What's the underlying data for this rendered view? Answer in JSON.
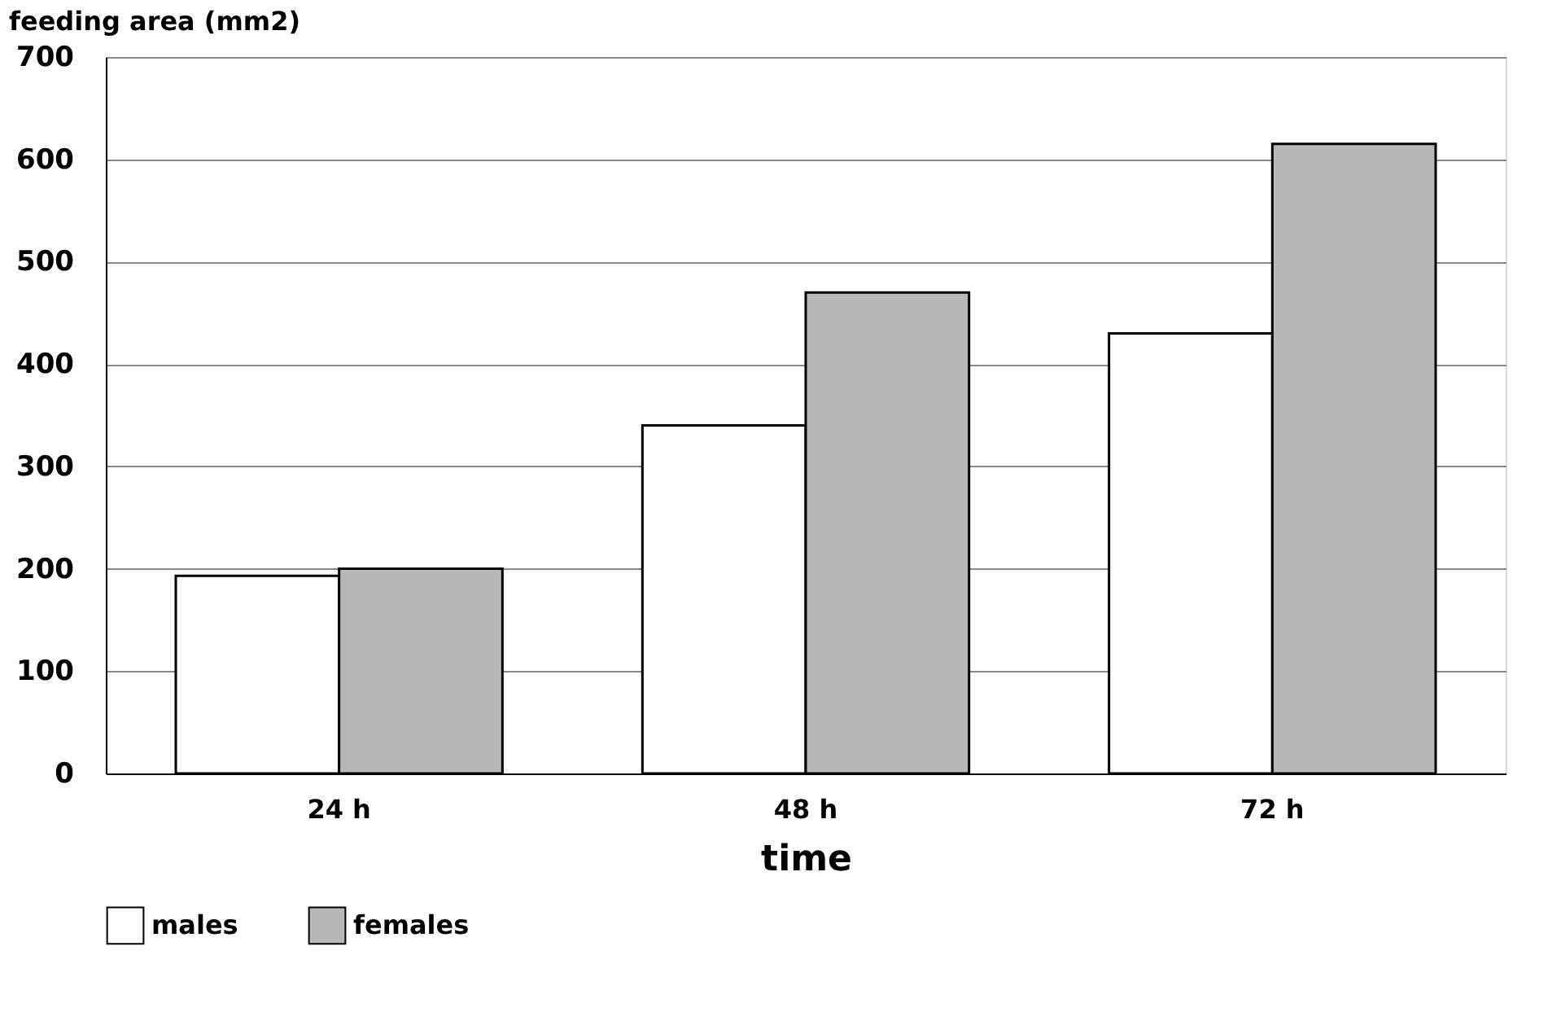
{
  "chart_data": {
    "type": "bar",
    "ylabel": "feeding area (mm2)",
    "xlabel": "time",
    "categories": [
      "24 h",
      "48 h",
      "72 h"
    ],
    "series": [
      {
        "name": "males",
        "color": "#ffffff",
        "values": [
          193,
          340,
          430
        ]
      },
      {
        "name": "females",
        "color": "#b8b8b8",
        "values": [
          200,
          470,
          615
        ]
      }
    ],
    "ylim": [
      0,
      700
    ],
    "yticks": [
      0,
      100,
      200,
      300,
      400,
      500,
      600,
      700
    ],
    "grid": "y",
    "legend": "bottom"
  }
}
